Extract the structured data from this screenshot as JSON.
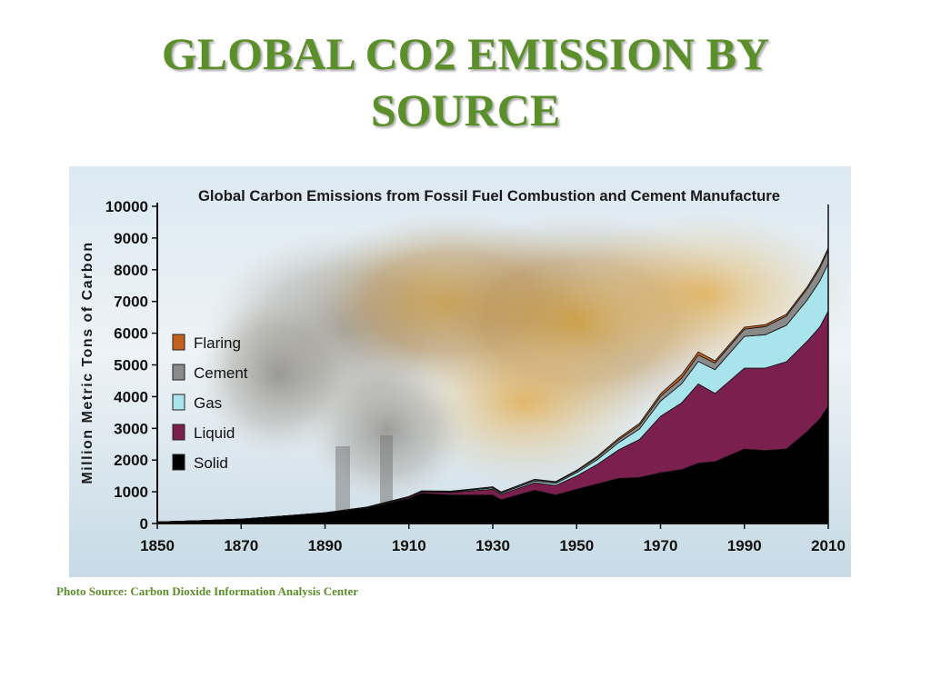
{
  "slide": {
    "title_line1": "GLOBAL CO2 EMISSION BY",
    "title_line2": "SOURCE",
    "source_note": "Photo Source: Carbon Dioxide Information Analysis Center"
  },
  "colors": {
    "title": "#5b8f2a",
    "solid": "#000000",
    "liquid": "#7a1f4e",
    "gas": "#a9e3ec",
    "cement": "#8a8a8a",
    "flaring": "#c4611c"
  },
  "chart_data": {
    "type": "area",
    "stacked": true,
    "title": "Global Carbon Emissions from Fossil Fuel Combustion and Cement Manufacture",
    "xlabel": "",
    "ylabel": "Million Metric Tons of Carbon",
    "xlim": [
      1850,
      2010
    ],
    "ylim": [
      0,
      10000
    ],
    "x_ticks": [
      "1850",
      "1870",
      "1890",
      "1910",
      "1930",
      "1950",
      "1970",
      "1990",
      "2010"
    ],
    "y_ticks": [
      "0",
      "1000",
      "2000",
      "3000",
      "4000",
      "5000",
      "6000",
      "7000",
      "8000",
      "9000",
      "10000"
    ],
    "legend_position": "left",
    "legend_order": [
      "Flaring",
      "Cement",
      "Gas",
      "Liquid",
      "Solid"
    ],
    "x": [
      1850,
      1860,
      1870,
      1880,
      1890,
      1900,
      1910,
      1913,
      1920,
      1930,
      1932,
      1940,
      1945,
      1950,
      1955,
      1960,
      1965,
      1970,
      1975,
      1979,
      1983,
      1990,
      1995,
      2000,
      2005,
      2008,
      2010
    ],
    "series": [
      {
        "name": "Solid",
        "values": [
          50,
          90,
          140,
          230,
          330,
          490,
          790,
          950,
          900,
          900,
          750,
          1050,
          900,
          1080,
          1250,
          1420,
          1450,
          1600,
          1700,
          1900,
          1950,
          2350,
          2300,
          2350,
          2900,
          3300,
          3700
        ]
      },
      {
        "name": "Liquid",
        "values": [
          0,
          0,
          0,
          5,
          10,
          20,
          40,
          50,
          80,
          180,
          170,
          240,
          300,
          420,
          620,
          900,
          1200,
          1780,
          2100,
          2500,
          2150,
          2550,
          2600,
          2750,
          2850,
          2900,
          3000
        ]
      },
      {
        "name": "Gas",
        "values": [
          0,
          0,
          0,
          0,
          2,
          5,
          10,
          15,
          20,
          40,
          40,
          50,
          60,
          100,
          150,
          230,
          330,
          480,
          600,
          710,
          750,
          1000,
          1050,
          1150,
          1300,
          1450,
          1500
        ]
      },
      {
        "name": "Cement",
        "values": [
          0,
          0,
          0,
          0,
          0,
          5,
          10,
          15,
          20,
          30,
          25,
          40,
          40,
          50,
          70,
          90,
          120,
          150,
          180,
          200,
          210,
          230,
          260,
          290,
          350,
          400,
          420
        ]
      },
      {
        "name": "Flaring",
        "values": [
          0,
          0,
          0,
          0,
          0,
          0,
          0,
          0,
          0,
          10,
          10,
          15,
          20,
          30,
          40,
          50,
          60,
          80,
          110,
          100,
          70,
          60,
          60,
          60,
          60,
          70,
          70
        ]
      }
    ]
  }
}
